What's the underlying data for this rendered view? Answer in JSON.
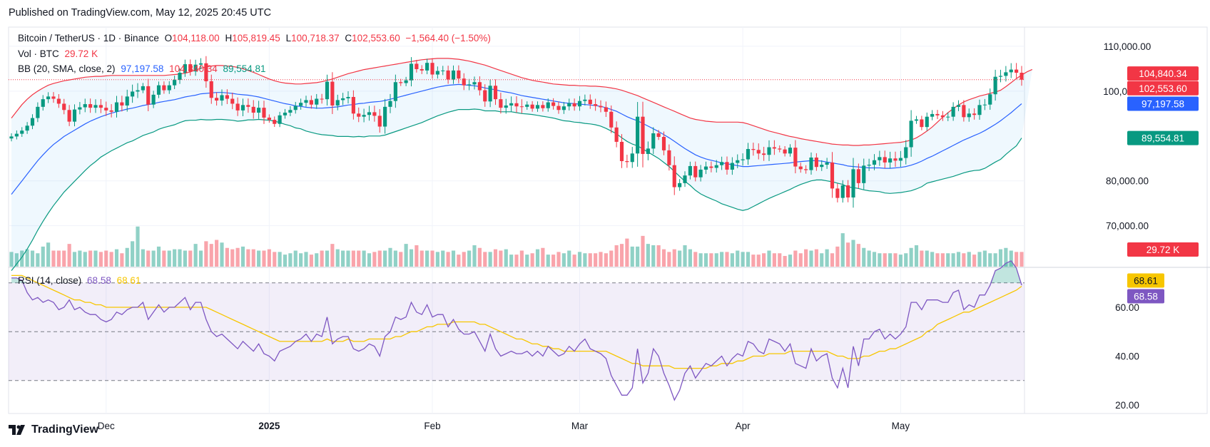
{
  "header": {
    "published": "Published on TradingView.com, May 12, 2025 20:45 UTC"
  },
  "legend": {
    "symbol": "Bitcoin / TetherUS · 1D · Binance",
    "o_label": "O",
    "o": "104,118.00",
    "h_label": "H",
    "h": "105,819.45",
    "l_label": "L",
    "l": "100,718.37",
    "c_label": "C",
    "c": "102,553.60",
    "change": "−1,564.40 (−1.50%)",
    "vol_label": "Vol · BTC",
    "vol": "29.72 K",
    "bb_label": "BB (20, SMA, close, 2)",
    "bb_mid": "97,197.58",
    "bb_upper": "104,840.34",
    "bb_lower": "89,554.81",
    "rsi_label": "RSI (14, close)",
    "rsi": "68.58",
    "rsi_ma": "68.61"
  },
  "price_badges": {
    "upper": "104,840.34",
    "close": "102,553.60",
    "mid": "97,197.58",
    "lower": "89,554.81",
    "vol": "29.72 K",
    "rsi_ma": "68.61",
    "rsi": "68.58"
  },
  "colors": {
    "up": "#089981",
    "down": "#f23645",
    "bb_upper": "#f23645",
    "bb_mid": "#2962ff",
    "bb_lower": "#089981",
    "rsi": "#7e57c2",
    "rsi_ma": "#f7c600"
  },
  "footer": {
    "brand": "TradingView"
  },
  "chart_data": {
    "type": "candlestick",
    "price_axis_ticks": [
      "110,000.00",
      "100,000.00",
      "80,000.00",
      "70,000.00"
    ],
    "price_tick_values": [
      110000,
      100000,
      80000,
      70000
    ],
    "rsi_axis_ticks": [
      "60.00",
      "40.00",
      "20.00"
    ],
    "rsi_tick_values": [
      60,
      40,
      20
    ],
    "rsi_bands": [
      70,
      50,
      30
    ],
    "x_labels": [
      "Dec",
      "2025",
      "Feb",
      "Mar",
      "Apr",
      "May"
    ],
    "x_label_dates": [
      "2024-12-01",
      "2025-01-01",
      "2025-02-01",
      "2025-03-01",
      "2025-04-01",
      "2025-05-01"
    ],
    "price_range": [
      62000,
      113000
    ],
    "rsi_range": [
      20,
      74
    ],
    "first_date": "2024-11-13",
    "last_date": "2025-05-12",
    "closes": [
      89900,
      90500,
      91200,
      92300,
      94000,
      96500,
      98200,
      98800,
      98300,
      97200,
      95800,
      93200,
      95900,
      96400,
      97100,
      96300,
      96900,
      96300,
      95700,
      95400,
      97500,
      96800,
      98800,
      99900,
      100200,
      101100,
      97000,
      99200,
      101300,
      100200,
      101300,
      102500,
      104100,
      106000,
      104400,
      105900,
      106200,
      102200,
      98500,
      97900,
      99100,
      98300,
      97200,
      95700,
      96900,
      96500,
      95200,
      96300,
      94100,
      93600,
      92700,
      94600,
      95200,
      95800,
      96700,
      97400,
      98000,
      97000,
      98300,
      98200,
      102100,
      96800,
      98000,
      98400,
      98700,
      95000,
      94300,
      94700,
      95300,
      94500,
      92100,
      96500,
      97800,
      102000,
      101800,
      102400,
      106100,
      104900,
      104600,
      106300,
      103700,
      104500,
      104600,
      102600,
      104600,
      102800,
      101300,
      101500,
      102000,
      100200,
      97700,
      101200,
      98200,
      96300,
      96800,
      97300,
      96600,
      96500,
      97000,
      96100,
      96900,
      96200,
      97500,
      96700,
      95800,
      96600,
      97300,
      96600,
      97800,
      98100,
      97100,
      96700,
      96400,
      95400,
      91900,
      88700,
      84400,
      84200,
      86100,
      94300,
      86000,
      87200,
      90600,
      89800,
      86800,
      83500,
      78600,
      79500,
      81200,
      83300,
      80800,
      82500,
      83200,
      82900,
      83500,
      84200,
      82500,
      84000,
      84600,
      84800,
      87100,
      86900,
      86100,
      85800,
      87500,
      87200,
      87000,
      86100,
      87400,
      83200,
      82600,
      82400,
      85200,
      83100,
      83600,
      84100,
      78300,
      76200,
      79000,
      76300,
      82600,
      79500,
      83400,
      83600,
      84600,
      85300,
      84100,
      85000,
      84500,
      85100,
      87500,
      93400,
      93700,
      92000,
      94300,
      94900,
      94600,
      94200,
      94300,
      96500,
      96900,
      94200,
      95000,
      94700,
      96900,
      97000,
      99300,
      103200,
      103400,
      104200,
      104800,
      104100,
      102550
    ],
    "volumes": [
      11,
      10,
      12,
      13,
      12,
      10,
      15,
      18,
      12,
      12,
      12,
      17,
      11,
      12,
      11,
      12,
      12,
      11,
      12,
      11,
      13,
      10,
      14,
      19,
      30,
      13,
      12,
      12,
      15,
      12,
      12,
      13,
      13,
      12,
      12,
      17,
      12,
      19,
      17,
      20,
      18,
      14,
      13,
      14,
      15,
      13,
      13,
      12,
      12,
      13,
      11,
      11,
      9,
      10,
      12,
      10,
      11,
      9,
      10,
      12,
      12,
      17,
      13,
      12,
      12,
      12,
      12,
      12,
      10,
      11,
      12,
      12,
      14,
      12,
      11,
      17,
      13,
      16,
      12,
      12,
      12,
      11,
      12,
      11,
      12,
      9,
      11,
      12,
      16,
      14,
      11,
      11,
      13,
      12,
      13,
      9,
      9,
      12,
      9,
      10,
      13,
      14,
      9,
      9,
      11,
      10,
      12,
      9,
      11,
      10,
      10,
      10,
      11,
      10,
      12,
      16,
      17,
      21,
      15,
      15,
      23,
      17,
      16,
      16,
      13,
      11,
      13,
      12,
      16,
      13,
      11,
      10,
      10,
      10,
      10,
      11,
      11,
      10,
      12,
      11,
      11,
      9,
      9,
      10,
      12,
      10,
      10,
      8,
      9,
      12,
      10,
      13,
      12,
      13,
      10,
      13,
      10,
      15,
      25,
      18,
      20,
      17,
      14,
      12,
      11,
      10,
      10,
      10,
      10,
      9,
      10,
      14,
      16,
      12,
      12,
      11,
      10,
      10,
      10,
      10,
      11,
      10,
      11,
      9,
      11,
      12,
      10,
      10,
      13,
      14,
      12,
      11,
      11,
      10,
      11,
      10,
      9
    ],
    "vol_range": [
      0,
      48000
    ],
    "rsi": [
      72,
      72,
      71,
      66,
      63,
      64,
      62,
      63,
      62,
      59,
      60,
      63,
      59,
      60,
      58,
      57,
      57,
      55,
      54,
      55,
      58,
      57,
      59,
      60,
      60,
      62,
      55,
      58,
      61,
      58,
      60,
      60,
      62,
      64,
      59,
      62,
      62,
      55,
      50,
      48,
      49,
      47,
      45,
      43,
      46,
      44,
      42,
      45,
      41,
      40,
      38,
      42,
      43,
      44,
      46,
      47,
      49,
      46,
      49,
      48,
      56,
      45,
      47,
      48,
      48,
      43,
      42,
      43,
      45,
      44,
      40,
      48,
      50,
      56,
      55,
      56,
      62,
      58,
      57,
      61,
      56,
      57,
      57,
      52,
      55,
      51,
      49,
      49,
      50,
      46,
      42,
      49,
      43,
      40,
      41,
      42,
      41,
      41,
      42,
      40,
      42,
      40,
      44,
      42,
      40,
      41,
      44,
      42,
      45,
      47,
      43,
      42,
      41,
      39,
      32,
      28,
      24,
      24,
      27,
      43,
      29,
      33,
      43,
      40,
      33,
      28,
      22,
      26,
      33,
      36,
      31,
      34,
      37,
      36,
      38,
      40,
      36,
      39,
      41,
      40,
      46,
      45,
      42,
      41,
      47,
      46,
      45,
      42,
      45,
      37,
      36,
      35,
      43,
      38,
      40,
      41,
      31,
      27,
      35,
      27,
      44,
      36,
      47,
      47,
      50,
      51,
      47,
      49,
      47,
      49,
      52,
      62,
      62,
      59,
      63,
      63,
      63,
      62,
      62,
      66,
      67,
      59,
      61,
      60,
      65,
      65,
      69,
      75,
      76,
      78,
      79,
      76,
      69
    ],
    "rsi_ma": [
      73,
      73,
      73,
      72,
      71,
      70,
      69,
      68,
      67,
      66,
      65,
      64,
      63,
      63,
      62,
      62,
      61,
      61,
      60,
      60,
      60,
      60,
      60,
      60,
      60,
      60,
      60,
      60,
      60,
      60,
      60,
      60,
      60,
      60,
      60,
      60,
      60,
      60,
      59,
      58,
      57,
      56,
      55,
      54,
      53,
      52,
      51,
      50,
      49,
      48,
      47,
      46,
      46,
      46,
      46,
      46,
      46,
      46,
      46,
      46,
      47,
      46,
      46,
      46,
      47,
      46,
      46,
      46,
      47,
      47,
      47,
      47,
      47,
      48,
      48,
      49,
      50,
      50,
      51,
      52,
      52,
      53,
      53,
      53,
      54,
      54,
      54,
      54,
      54,
      53,
      53,
      52,
      51,
      50,
      49,
      48,
      47,
      47,
      46,
      45,
      45,
      44,
      44,
      43,
      43,
      42,
      42,
      42,
      42,
      42,
      42,
      42,
      42,
      42,
      41,
      40,
      39,
      38,
      37,
      37,
      36,
      36,
      36,
      36,
      36,
      36,
      35,
      35,
      35,
      35,
      35,
      35,
      35,
      36,
      36,
      37,
      37,
      37,
      38,
      38,
      39,
      40,
      40,
      40,
      41,
      41,
      41,
      41,
      42,
      42,
      42,
      42,
      42,
      42,
      42,
      42,
      41,
      40,
      40,
      39,
      39,
      39,
      40,
      40,
      41,
      42,
      42,
      43,
      43,
      44,
      45,
      46,
      47,
      48,
      50,
      51,
      53,
      54,
      55,
      56,
      57,
      58,
      58,
      59,
      60,
      61,
      62,
      63,
      64,
      65,
      66,
      67,
      68.6
    ],
    "bb_mid": [
      77000,
      78500,
      80000,
      81500,
      83000,
      84500,
      85800,
      87000,
      88100,
      89000,
      89900,
      90600,
      91300,
      92000,
      92700,
      93300,
      93800,
      94300,
      94700,
      95100,
      95400,
      95700,
      96000,
      96200,
      96500,
      96800,
      97000,
      97200,
      97500,
      97700,
      97900,
      98100,
      98400,
      98700,
      98900,
      99100,
      99400,
      99500,
      99600,
      99700,
      99700,
      99600,
      99500,
      99300,
      99200,
      99100,
      98900,
      98700,
      98400,
      98100,
      97800,
      97500,
      97200,
      97000,
      96700,
      96600,
      96400,
      96300,
      96200,
      96200,
      96300,
      96400,
      96500,
      96700,
      96900,
      97000,
      97200,
      97300,
      97500,
      97600,
      97700,
      97900,
      98200,
      98500,
      98800,
      99100,
      99400,
      99700,
      100000,
      100300,
      100600,
      100900,
      101100,
      101300,
      101400,
      101500,
      101400,
      101300,
      101200,
      101000,
      100700,
      100500,
      100300,
      100000,
      99800,
      99600,
      99300,
      99000,
      98800,
      98600,
      98400,
      98200,
      98000,
      97800,
      97600,
      97400,
      97300,
      97200,
      97100,
      97000,
      96900,
      96800,
      96600,
      96300,
      95900,
      95500,
      94900,
      94300,
      93800,
      93400,
      92800,
      92200,
      91600,
      91000,
      90300,
      89600,
      88800,
      88000,
      87200,
      86500,
      85800,
      85300,
      84900,
      84600,
      84300,
      84000,
      83800,
      83600,
      83400,
      83200,
      83200,
      83300,
      83400,
      83500,
      83600,
      83700,
      83800,
      83900,
      84000,
      84200,
      84300,
      84400,
      84500,
      84500,
      84400,
      84200,
      84000,
      83800,
      83600,
      83300,
      83200,
      83100,
      83000,
      82900,
      82900,
      82900,
      82800,
      82800,
      82900,
      83000,
      83200,
      83500,
      83900,
      84400,
      85000,
      85500,
      86100,
      86700,
      87300,
      87900,
      88500,
      89100,
      89600,
      90100,
      90600,
      91200,
      91900,
      92600,
      93400,
      94300,
      95200,
      96200,
      97198
    ],
    "bb_upper": [
      94000,
      95500,
      97000,
      98200,
      99200,
      100000,
      100700,
      101300,
      101700,
      102000,
      102300,
      102500,
      102700,
      102900,
      103100,
      103200,
      103300,
      103300,
      103400,
      103500,
      103500,
      103500,
      103500,
      103500,
      103500,
      103500,
      103500,
      103500,
      103500,
      103500,
      103600,
      103700,
      103800,
      104000,
      104300,
      104700,
      105100,
      105400,
      105600,
      105700,
      105700,
      105600,
      105500,
      105300,
      105000,
      104600,
      104200,
      103700,
      103200,
      102700,
      102300,
      102000,
      101800,
      101700,
      101600,
      101600,
      101700,
      101800,
      101900,
      102100,
      102400,
      102700,
      103100,
      103500,
      103900,
      104200,
      104500,
      104800,
      105000,
      105200,
      105400,
      105600,
      105800,
      106000,
      106200,
      106400,
      106600,
      106800,
      107000,
      107100,
      107200,
      107300,
      107300,
      107300,
      107200,
      107100,
      106900,
      106700,
      106400,
      106100,
      105800,
      105400,
      105000,
      104600,
      104200,
      103800,
      103400,
      103000,
      102700,
      102400,
      102200,
      102000,
      101800,
      101600,
      101500,
      101400,
      101300,
      101300,
      101200,
      101200,
      101100,
      101100,
      101000,
      100900,
      100700,
      100500,
      100200,
      99800,
      99400,
      99000,
      98500,
      98000,
      97500,
      97000,
      96500,
      96000,
      95500,
      95000,
      94500,
      94000,
      93700,
      93500,
      93300,
      93200,
      93100,
      93100,
      93100,
      93100,
      93100,
      93000,
      92700,
      92300,
      91900,
      91500,
      91100,
      90800,
      90500,
      90200,
      89900,
      89700,
      89400,
      89200,
      89000,
      88800,
      88600,
      88400,
      88200,
      88100,
      88000,
      88000,
      87900,
      87900,
      88000,
      88000,
      88100,
      88200,
      88300,
      88400,
      88500,
      88600,
      88800,
      89100,
      89600,
      90300,
      91100,
      92000,
      93100,
      94200,
      95200,
      96100,
      96900,
      97600,
      98100,
      98500,
      98900,
      99200,
      99500,
      99800,
      100200,
      101000,
      101900,
      102800,
      103600,
      104300,
      104840
    ],
    "bb_lower": [
      60000,
      61500,
      63000,
      64800,
      66800,
      69000,
      71000,
      72800,
      74500,
      76000,
      77500,
      78700,
      79900,
      81100,
      82300,
      83400,
      84300,
      85300,
      86000,
      86700,
      87300,
      87900,
      88500,
      88900,
      89500,
      90100,
      90500,
      90900,
      91500,
      91900,
      92200,
      92500,
      93000,
      93400,
      93500,
      93500,
      93700,
      93600,
      93600,
      93700,
      93700,
      93600,
      93500,
      93300,
      93400,
      93600,
      93600,
      93700,
      93600,
      93500,
      93300,
      93000,
      92600,
      92300,
      91800,
      91600,
      91100,
      90800,
      90500,
      90300,
      90200,
      90100,
      89900,
      89900,
      89900,
      89800,
      89900,
      89800,
      90000,
      90000,
      90000,
      90200,
      90600,
      91000,
      91400,
      91800,
      92200,
      92600,
      93000,
      93500,
      94000,
      94500,
      94900,
      95300,
      95600,
      95900,
      95900,
      95900,
      96000,
      95900,
      95600,
      95600,
      95600,
      95400,
      95400,
      95400,
      95200,
      95000,
      94900,
      94800,
      94600,
      94400,
      94200,
      94000,
      93700,
      93400,
      93300,
      93100,
      93000,
      92800,
      92700,
      92500,
      92200,
      91700,
      91100,
      90500,
      89600,
      88800,
      88200,
      87800,
      87100,
      86400,
      85700,
      85000,
      84100,
      83200,
      82100,
      81000,
      79900,
      79000,
      77900,
      77100,
      76500,
      76000,
      75500,
      74900,
      74500,
      74100,
      73700,
      73400,
      73700,
      74300,
      74900,
      75500,
      76100,
      76600,
      77100,
      77600,
      78100,
      78700,
      79200,
      79600,
      80000,
      80200,
      80200,
      80000,
      79800,
      79500,
      79200,
      78600,
      78500,
      78300,
      78000,
      77800,
      77700,
      77600,
      77300,
      77200,
      77300,
      77400,
      77600,
      77800,
      78200,
      78700,
      79500,
      79800,
      80100,
      80400,
      80700,
      81000,
      81400,
      81800,
      82100,
      82300,
      82400,
      82800,
      83500,
      84200,
      84800,
      85900,
      86900,
      87800,
      89555
    ]
  }
}
